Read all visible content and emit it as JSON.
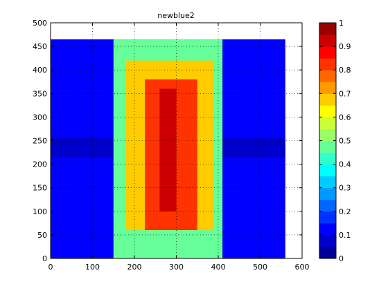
{
  "chart_data": {
    "type": "heatmap",
    "title": "newblue2",
    "xlabel": "",
    "ylabel": "",
    "xlim": [
      0,
      600
    ],
    "ylim": [
      0,
      500
    ],
    "x_ticks": [
      0,
      100,
      200,
      300,
      400,
      500,
      600
    ],
    "y_ticks": [
      0,
      50,
      100,
      150,
      200,
      250,
      300,
      350,
      400,
      450,
      500
    ],
    "grid": true,
    "colormap": "jet",
    "colorbar": {
      "min": 0,
      "max": 1,
      "ticks": [
        0,
        0.1,
        0.2,
        0.3,
        0.4,
        0.5,
        0.6,
        0.7,
        0.8,
        0.9,
        1
      ],
      "tick_labels": [
        "0",
        "0.1",
        "0.2",
        "0.3",
        "0.4",
        "0.5",
        "0.6",
        "0.7",
        "0.8",
        "0.9",
        "1"
      ],
      "levels": 20,
      "placement": "right"
    },
    "data_extent": {
      "x": [
        0,
        560
      ],
      "y": [
        0,
        465
      ]
    },
    "regions": [
      {
        "x": [
          0,
          560
        ],
        "y": [
          0,
          465
        ],
        "value": 0.12,
        "note": "background"
      },
      {
        "x": [
          0,
          150
        ],
        "y": [
          215,
          255
        ],
        "value": 0.05
      },
      {
        "x": [
          400,
          560
        ],
        "y": [
          215,
          255
        ],
        "value": 0.05
      },
      {
        "x": [
          150,
          410
        ],
        "y": [
          0,
          465
        ],
        "value": 0.45
      },
      {
        "x": [
          180,
          390
        ],
        "y": [
          60,
          420
        ],
        "value": 0.65
      },
      {
        "x": [
          225,
          350
        ],
        "y": [
          60,
          380
        ],
        "value": 0.8
      },
      {
        "x": [
          260,
          300
        ],
        "y": [
          100,
          360
        ],
        "value": 0.9
      }
    ]
  }
}
